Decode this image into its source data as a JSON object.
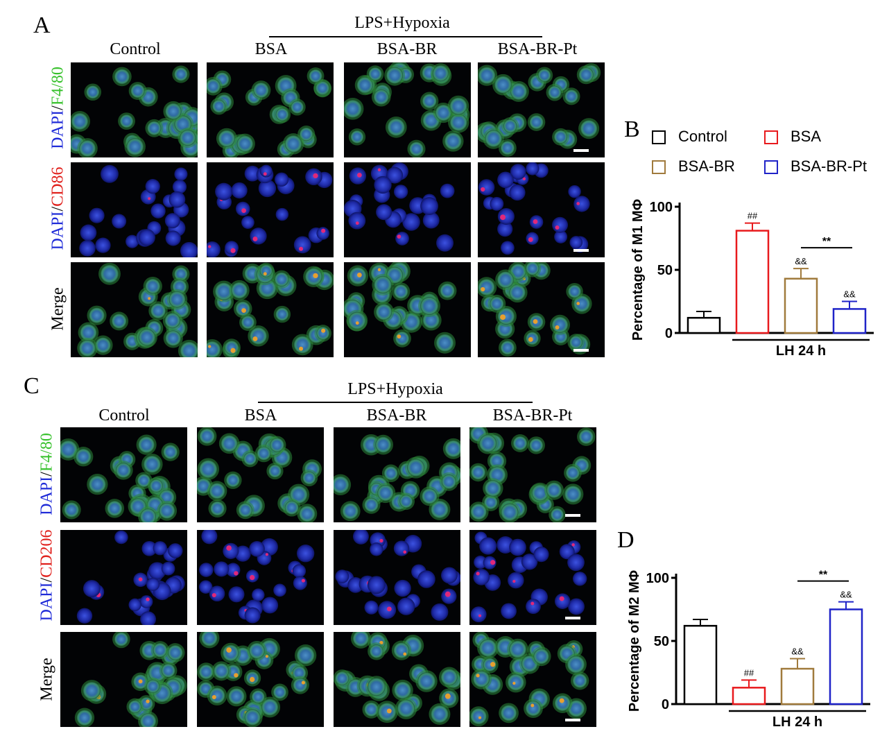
{
  "panelA": {
    "letter": "A",
    "group_label": "LPS+Hypoxia",
    "columns": [
      "Control",
      "BSA",
      "BSA-BR",
      "BSA-BR-Pt"
    ],
    "rows": {
      "row1": {
        "blue": "DAPI",
        "sep": "/",
        "color": "F4/80"
      },
      "row2": {
        "blue": "DAPI",
        "sep": "/",
        "color": "CD86"
      },
      "row3": "Merge"
    }
  },
  "panelC": {
    "letter": "C",
    "group_label": "LPS+Hypoxia",
    "columns": [
      "Control",
      "BSA",
      "BSA-BR",
      "BSA-BR-Pt"
    ],
    "rows": {
      "row1": {
        "blue": "DAPI",
        "sep": "/",
        "color": "F4/80"
      },
      "row2": {
        "blue": "DAPI",
        "sep": "/",
        "color": "CD206"
      },
      "row3": "Merge"
    }
  },
  "legend": {
    "items": [
      {
        "label": "Control",
        "color": "#000000"
      },
      {
        "label": "BSA",
        "color": "#e8191c"
      },
      {
        "label": "BSA-BR",
        "color": "#a07a3c"
      },
      {
        "label": "BSA-BR-Pt",
        "color": "#1f23c8"
      }
    ]
  },
  "chart_data": [
    {
      "type": "bar",
      "panel": "B",
      "categories": [
        "Control",
        "BSA",
        "BSA-BR",
        "BSA-BR-Pt"
      ],
      "values": [
        12,
        81,
        43,
        19
      ],
      "errors": [
        5,
        6,
        8,
        6
      ],
      "colors": [
        "#000000",
        "#e8191c",
        "#a07a3c",
        "#1f23c8"
      ],
      "ylabel": "Percentage of M1 MΦ",
      "yticks": [
        0,
        50,
        100
      ],
      "ylim": [
        0,
        100
      ],
      "bracket_label": "LH 24 h",
      "annotations": [
        {
          "bar": 1,
          "text": "##"
        },
        {
          "bar": 2,
          "text": "&&"
        },
        {
          "bar": 3,
          "text": "&&"
        }
      ],
      "significance": {
        "from": 2,
        "to": 3,
        "text": "**"
      }
    },
    {
      "type": "bar",
      "panel": "D",
      "categories": [
        "Control",
        "BSA",
        "BSA-BR",
        "BSA-BR-Pt"
      ],
      "values": [
        62,
        13,
        28,
        75
      ],
      "errors": [
        5,
        6,
        8,
        6
      ],
      "colors": [
        "#000000",
        "#e8191c",
        "#a07a3c",
        "#1f23c8"
      ],
      "ylabel": "Percentage of M2 MΦ",
      "yticks": [
        0,
        50,
        100
      ],
      "ylim": [
        0,
        100
      ],
      "bracket_label": "LH 24 h",
      "annotations": [
        {
          "bar": 1,
          "text": "##"
        },
        {
          "bar": 2,
          "text": "&&"
        },
        {
          "bar": 3,
          "text": "&&"
        }
      ],
      "significance": {
        "from": 2,
        "to": 3,
        "text": "**"
      }
    }
  ]
}
